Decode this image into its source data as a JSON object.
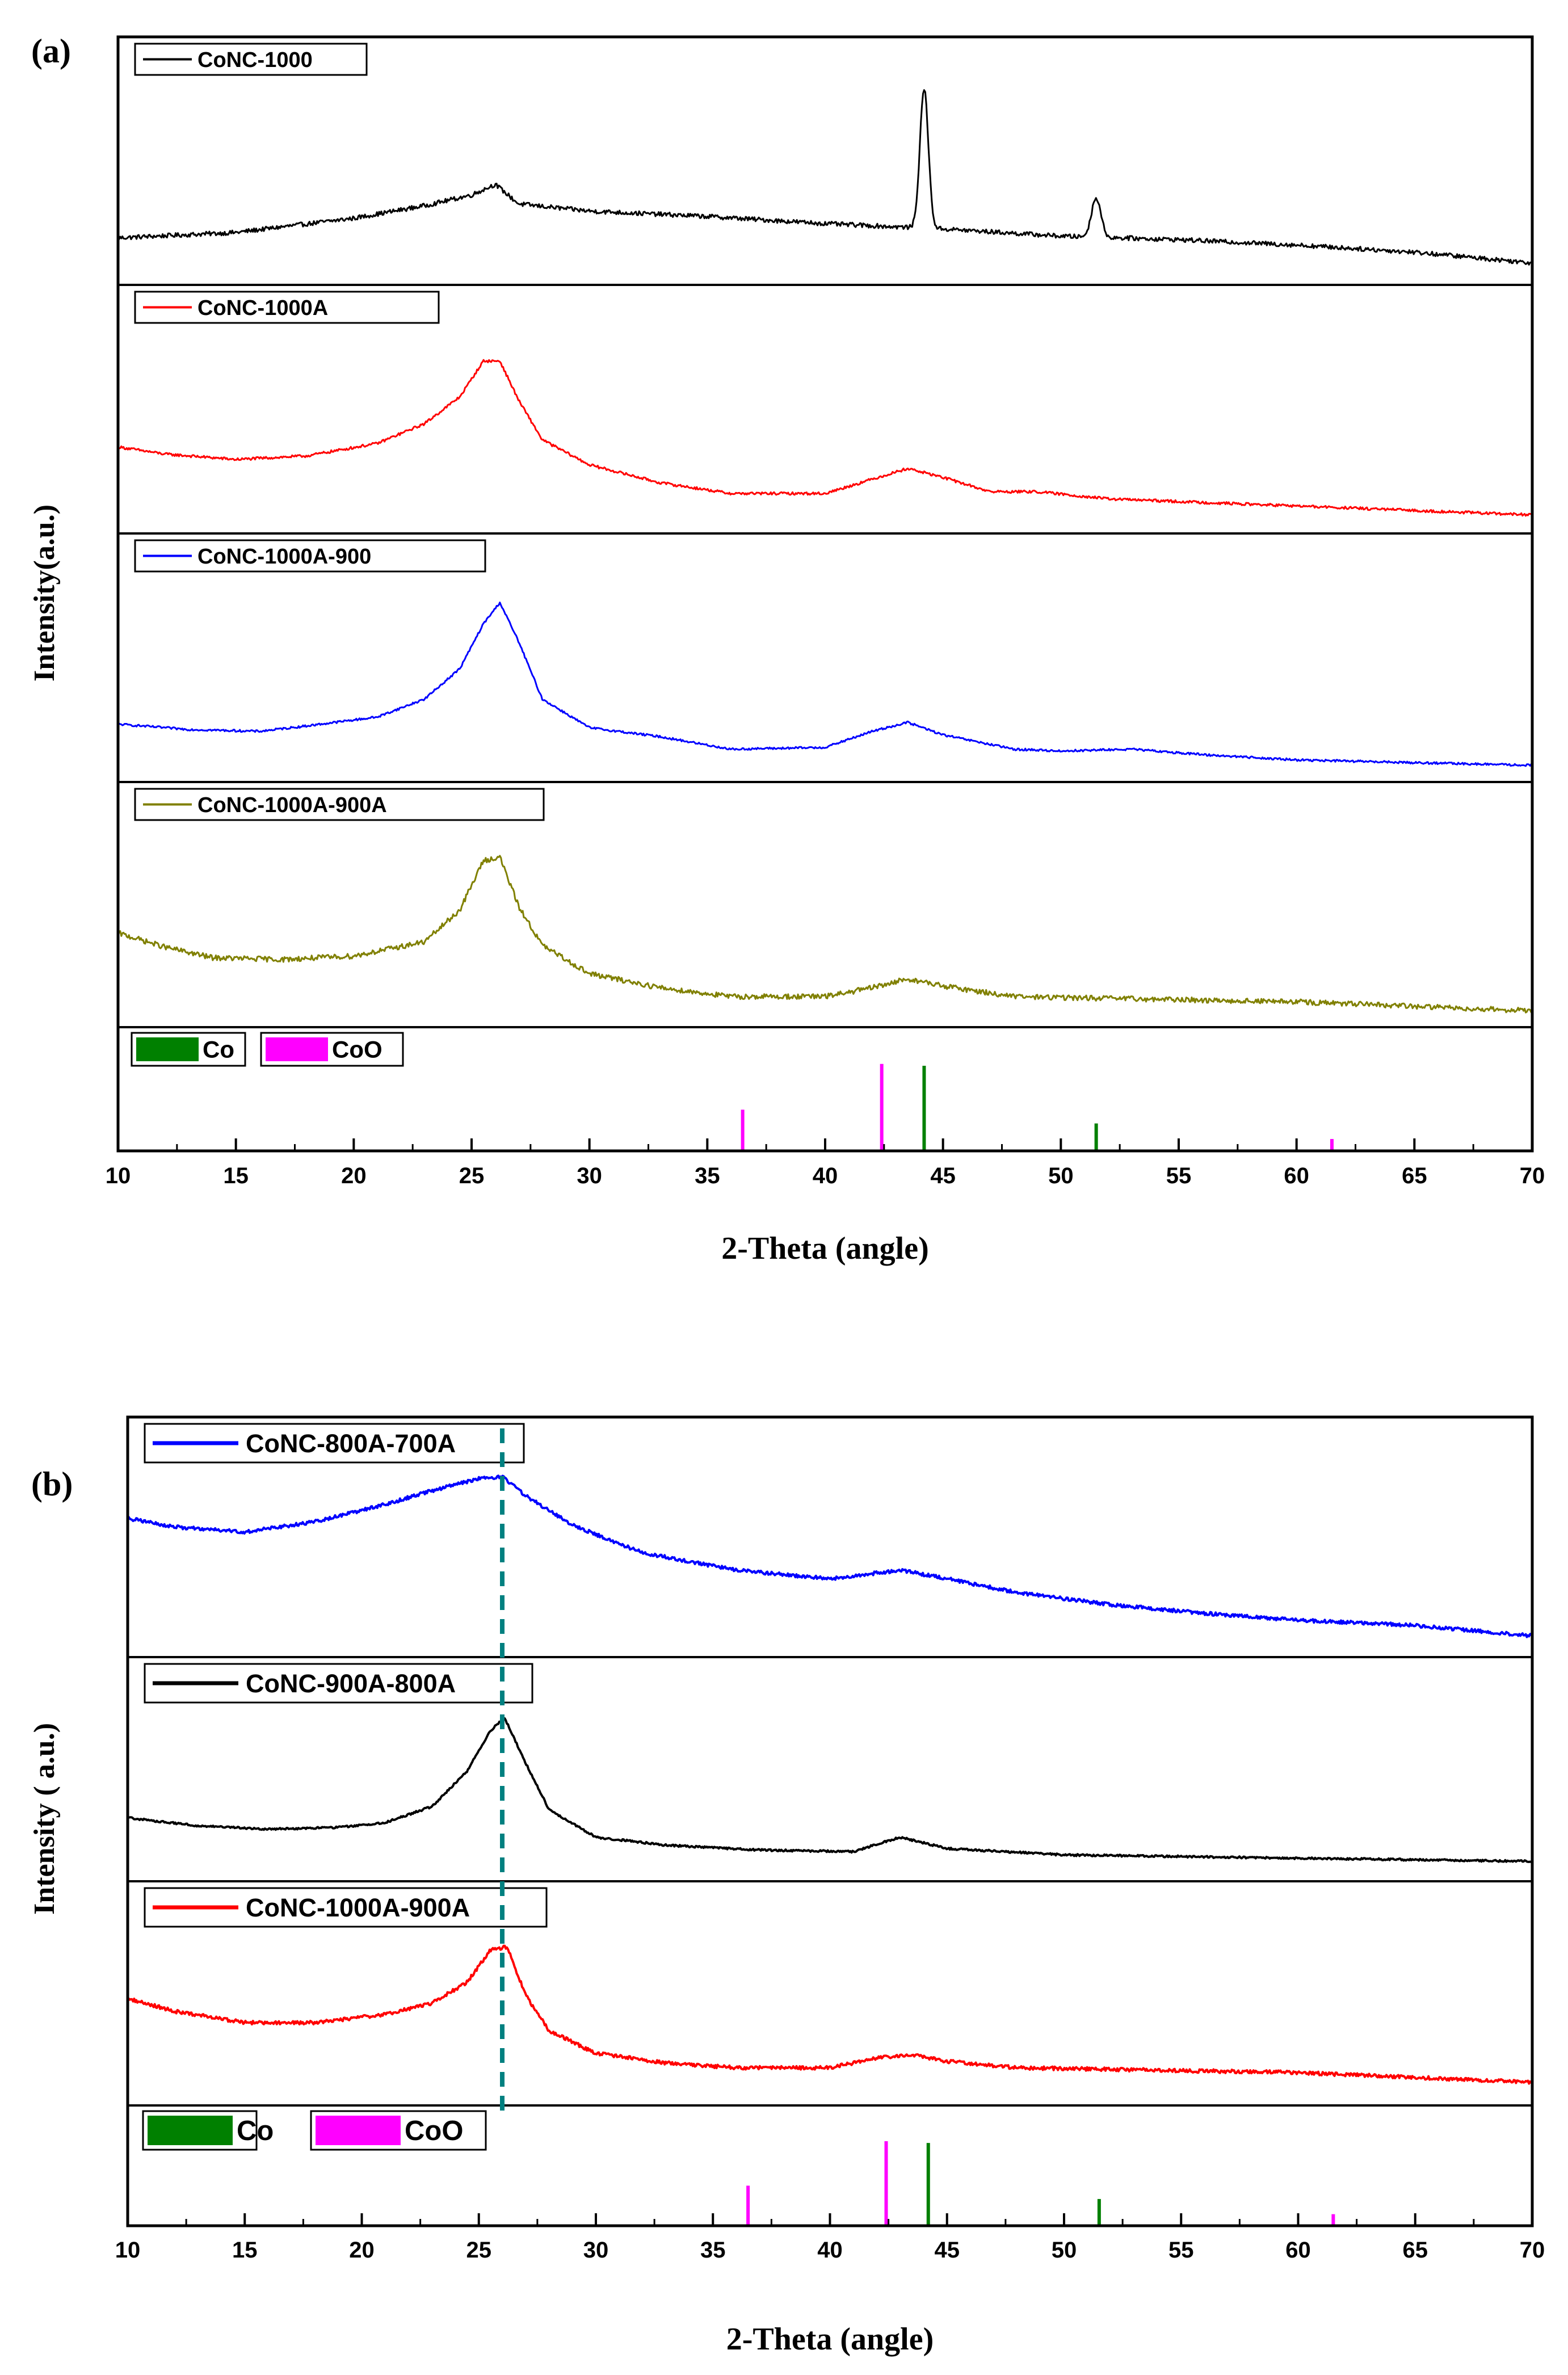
{
  "chart_data": [
    {
      "panel_label": "(a)",
      "type": "line",
      "title": "",
      "xlabel": "2-Theta (angle)",
      "ylabel": "Intensity(a.u.)",
      "xlim": [
        10,
        70
      ],
      "xticks": [
        10,
        15,
        20,
        25,
        30,
        35,
        40,
        45,
        50,
        55,
        60,
        65,
        70
      ],
      "grid": false,
      "series": [
        {
          "name": "CoNC-1000",
          "color": "#000000",
          "baseline": [
            [
              10,
              0.18
            ],
            [
              15,
              0.21
            ],
            [
              20,
              0.29
            ],
            [
              23,
              0.36
            ],
            [
              25,
              0.42
            ],
            [
              26,
              0.48
            ],
            [
              27,
              0.37
            ],
            [
              30,
              0.33
            ],
            [
              35,
              0.3
            ],
            [
              40,
              0.26
            ],
            [
              45,
              0.23
            ],
            [
              50,
              0.19
            ],
            [
              55,
              0.17
            ],
            [
              60,
              0.14
            ],
            [
              65,
              0.1
            ],
            [
              70,
              0.04
            ]
          ],
          "peaks": [
            {
              "x": 44.2,
              "height": 0.78,
              "width": 0.18
            },
            {
              "x": 51.5,
              "height": 0.22,
              "width": 0.2
            }
          ],
          "noise": 0.025
        },
        {
          "name": "CoNC-1000A",
          "color": "#ff0000",
          "baseline": [
            [
              10,
              0.4
            ],
            [
              12,
              0.36
            ],
            [
              15,
              0.33
            ],
            [
              18,
              0.35
            ],
            [
              21,
              0.42
            ],
            [
              23,
              0.53
            ],
            [
              24.5,
              0.68
            ],
            [
              25.5,
              0.88
            ],
            [
              26.2,
              0.88
            ],
            [
              27,
              0.66
            ],
            [
              28,
              0.44
            ],
            [
              30,
              0.3
            ],
            [
              33,
              0.2
            ],
            [
              36,
              0.14
            ],
            [
              40,
              0.14
            ],
            [
              42,
              0.22
            ],
            [
              43.5,
              0.28
            ],
            [
              45,
              0.23
            ],
            [
              47,
              0.15
            ],
            [
              49,
              0.15
            ],
            [
              52,
              0.11
            ],
            [
              60,
              0.07
            ],
            [
              70,
              0.02
            ]
          ],
          "noise": 0.015
        },
        {
          "name": "CoNC-1000A-900",
          "color": "#0000ff",
          "baseline": [
            [
              10,
              0.24
            ],
            [
              13,
              0.21
            ],
            [
              16,
              0.2
            ],
            [
              18,
              0.23
            ],
            [
              21,
              0.28
            ],
            [
              23,
              0.38
            ],
            [
              24.5,
              0.55
            ],
            [
              25.5,
              0.8
            ],
            [
              26.2,
              0.92
            ],
            [
              27,
              0.7
            ],
            [
              28,
              0.38
            ],
            [
              30,
              0.22
            ],
            [
              33,
              0.17
            ],
            [
              36,
              0.1
            ],
            [
              40,
              0.11
            ],
            [
              42,
              0.2
            ],
            [
              43.5,
              0.25
            ],
            [
              45,
              0.18
            ],
            [
              48,
              0.1
            ],
            [
              50,
              0.09
            ],
            [
              53,
              0.1
            ],
            [
              56,
              0.07
            ],
            [
              60,
              0.04
            ],
            [
              70,
              0.01
            ]
          ],
          "noise": 0.012
        },
        {
          "name": "CoNC-1000A-900A",
          "color": "#808000",
          "baseline": [
            [
              10,
              0.45
            ],
            [
              12,
              0.37
            ],
            [
              14,
              0.31
            ],
            [
              17,
              0.3
            ],
            [
              20,
              0.32
            ],
            [
              23,
              0.4
            ],
            [
              24.5,
              0.58
            ],
            [
              25.5,
              0.86
            ],
            [
              26.2,
              0.88
            ],
            [
              27,
              0.6
            ],
            [
              28,
              0.38
            ],
            [
              30,
              0.22
            ],
            [
              33,
              0.14
            ],
            [
              36,
              0.09
            ],
            [
              40,
              0.09
            ],
            [
              42,
              0.14
            ],
            [
              43.5,
              0.19
            ],
            [
              45,
              0.15
            ],
            [
              48,
              0.09
            ],
            [
              52,
              0.08
            ],
            [
              60,
              0.06
            ],
            [
              70,
              0.01
            ]
          ],
          "noise": 0.03
        }
      ],
      "reference_legend": [
        {
          "label": "Co",
          "color": "#008000"
        },
        {
          "label": "CoO",
          "color": "#ff00ff"
        }
      ],
      "reference_lines": [
        {
          "phase": "CoO",
          "x": 36.5,
          "intensity": 0.45,
          "color": "#ff00ff"
        },
        {
          "phase": "CoO",
          "x": 42.4,
          "intensity": 0.95,
          "color": "#ff00ff"
        },
        {
          "phase": "Co",
          "x": 44.2,
          "intensity": 0.93,
          "color": "#008000"
        },
        {
          "phase": "Co",
          "x": 51.5,
          "intensity": 0.3,
          "color": "#008000"
        },
        {
          "phase": "CoO",
          "x": 61.5,
          "intensity": 0.13,
          "color": "#ff00ff"
        }
      ]
    },
    {
      "panel_label": "(b)",
      "type": "line",
      "title": "",
      "xlabel": "2-Theta (angle)",
      "ylabel": "Intensity ( a.u.)",
      "xlim": [
        10,
        70
      ],
      "xticks": [
        10,
        15,
        20,
        25,
        30,
        35,
        40,
        45,
        50,
        55,
        60,
        65,
        70
      ],
      "grid": false,
      "marker_line_x": 26.0,
      "marker_line_color": "#008080",
      "series": [
        {
          "name": "CoNC-800A-700A",
          "color": "#0000ff",
          "baseline": [
            [
              10,
              0.72
            ],
            [
              12,
              0.67
            ],
            [
              15,
              0.64
            ],
            [
              18,
              0.7
            ],
            [
              21,
              0.8
            ],
            [
              23,
              0.88
            ],
            [
              25,
              0.95
            ],
            [
              26,
              0.96
            ],
            [
              27,
              0.85
            ],
            [
              29,
              0.68
            ],
            [
              32,
              0.52
            ],
            [
              36,
              0.42
            ],
            [
              40,
              0.37
            ],
            [
              43,
              0.42
            ],
            [
              45,
              0.37
            ],
            [
              48,
              0.29
            ],
            [
              52,
              0.22
            ],
            [
              56,
              0.17
            ],
            [
              60,
              0.13
            ],
            [
              65,
              0.1
            ],
            [
              70,
              0.04
            ]
          ],
          "noise": 0.02
        },
        {
          "name": "CoNC-900A-800A",
          "color": "#000000",
          "baseline": [
            [
              10,
              0.31
            ],
            [
              13,
              0.26
            ],
            [
              16,
              0.24
            ],
            [
              19,
              0.25
            ],
            [
              21,
              0.28
            ],
            [
              23,
              0.38
            ],
            [
              24.5,
              0.6
            ],
            [
              25.5,
              0.85
            ],
            [
              26.1,
              0.93
            ],
            [
              27,
              0.65
            ],
            [
              28,
              0.36
            ],
            [
              30,
              0.19
            ],
            [
              33,
              0.14
            ],
            [
              37,
              0.11
            ],
            [
              41,
              0.1
            ],
            [
              43,
              0.19
            ],
            [
              45,
              0.12
            ],
            [
              50,
              0.08
            ],
            [
              55,
              0.07
            ],
            [
              60,
              0.06
            ],
            [
              70,
              0.04
            ]
          ],
          "noise": 0.012
        },
        {
          "name": "CoNC-1000A-900A",
          "color": "#ff0000",
          "baseline": [
            [
              10,
              0.58
            ],
            [
              12,
              0.5
            ],
            [
              15,
              0.43
            ],
            [
              18,
              0.43
            ],
            [
              21,
              0.48
            ],
            [
              23,
              0.55
            ],
            [
              24.5,
              0.68
            ],
            [
              25.5,
              0.88
            ],
            [
              26.2,
              0.9
            ],
            [
              27,
              0.6
            ],
            [
              28,
              0.38
            ],
            [
              30,
              0.24
            ],
            [
              33,
              0.18
            ],
            [
              36,
              0.15
            ],
            [
              40,
              0.15
            ],
            [
              42,
              0.21
            ],
            [
              43.5,
              0.23
            ],
            [
              45,
              0.19
            ],
            [
              48,
              0.15
            ],
            [
              52,
              0.14
            ],
            [
              60,
              0.12
            ],
            [
              70,
              0.06
            ]
          ],
          "noise": 0.022
        }
      ],
      "reference_legend": [
        {
          "label": "Co",
          "color": "#008000"
        },
        {
          "label": "CoO",
          "color": "#ff00ff"
        }
      ],
      "reference_lines": [
        {
          "phase": "CoO",
          "x": 36.5,
          "intensity": 0.45,
          "color": "#ff00ff"
        },
        {
          "phase": "CoO",
          "x": 42.4,
          "intensity": 0.95,
          "color": "#ff00ff"
        },
        {
          "phase": "Co",
          "x": 44.2,
          "intensity": 0.93,
          "color": "#008000"
        },
        {
          "phase": "Co",
          "x": 51.5,
          "intensity": 0.3,
          "color": "#008000"
        },
        {
          "phase": "CoO",
          "x": 61.5,
          "intensity": 0.13,
          "color": "#ff00ff"
        }
      ]
    }
  ]
}
